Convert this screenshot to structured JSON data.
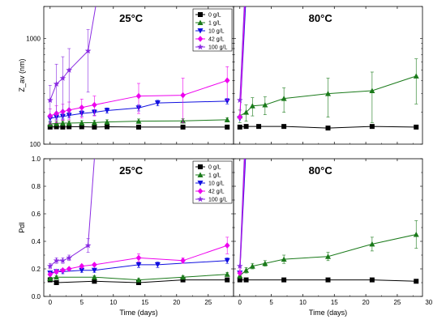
{
  "chart_data": [
    {
      "type": "line",
      "id": "zav_25",
      "panel_label": "25°C",
      "ylabel": "Z_av (nm)",
      "y_scale": "log",
      "ylim": [
        100,
        2000
      ],
      "xlim": [
        -1,
        29
      ],
      "yticks": [
        {
          "v": 100,
          "label": "100"
        },
        {
          "v": 1000,
          "label": "1000"
        }
      ],
      "series": [
        {
          "name": "0 g/L",
          "color": "#000000",
          "marker": "square",
          "x": [
            0,
            1,
            2,
            3,
            5,
            7,
            9,
            14,
            21,
            28
          ],
          "y": [
            145,
            146,
            145,
            146,
            146,
            145,
            146,
            145,
            145,
            145
          ],
          "err": [
            6,
            6,
            6,
            6,
            6,
            6,
            6,
            6,
            6,
            6
          ]
        },
        {
          "name": "1 g/L",
          "color": "#1a7a1a",
          "marker": "triangle-up",
          "x": [
            0,
            1,
            2,
            3,
            5,
            7,
            9,
            14,
            21,
            28
          ],
          "y": [
            155,
            157,
            158,
            158,
            159,
            160,
            162,
            165,
            166,
            170
          ],
          "err": [
            8,
            8,
            8,
            8,
            8,
            8,
            8,
            8,
            8,
            8
          ]
        },
        {
          "name": "10 g/L",
          "color": "#1010e0",
          "marker": "triangle-down",
          "x": [
            0,
            1,
            2,
            3,
            5,
            7,
            9,
            14,
            17,
            28
          ],
          "y": [
            175,
            180,
            183,
            187,
            195,
            200,
            208,
            220,
            245,
            255
          ],
          "err": [
            10,
            10,
            10,
            10,
            12,
            12,
            12,
            14,
            15,
            15
          ]
        },
        {
          "name": "42 g/L",
          "color": "#ee00ee",
          "marker": "diamond",
          "x": [
            0,
            1,
            2,
            3,
            5,
            7,
            14,
            21,
            28
          ],
          "y": [
            185,
            195,
            203,
            210,
            222,
            235,
            285,
            290,
            400
          ],
          "err": [
            30,
            35,
            35,
            40,
            45,
            50,
            90,
            130,
            140
          ]
        },
        {
          "name": "100 g/L",
          "color": "#8a2be2",
          "marker": "star",
          "x": [
            0,
            1,
            2,
            3,
            6,
            7.2
          ],
          "y": [
            260,
            370,
            420,
            500,
            760,
            2000
          ],
          "err": [
            100,
            200,
            250,
            300,
            450,
            0
          ]
        }
      ]
    },
    {
      "type": "line",
      "id": "zav_80",
      "panel_label": "80°C",
      "y_scale": "log",
      "ylim": [
        100,
        2000
      ],
      "xlim": [
        -1,
        29
      ],
      "series": [
        {
          "name": "0 g/L",
          "color": "#000000",
          "marker": "square",
          "x": [
            0,
            1,
            3,
            7,
            14,
            21,
            28
          ],
          "y": [
            145,
            147,
            147,
            147,
            142,
            147,
            145
          ],
          "err": [
            6,
            6,
            6,
            6,
            6,
            6,
            6
          ]
        },
        {
          "name": "1 g/L",
          "color": "#1a7a1a",
          "marker": "triangle-up",
          "x": [
            0,
            1,
            2,
            4,
            7,
            14,
            21,
            28
          ],
          "y": [
            185,
            200,
            230,
            235,
            270,
            300,
            320,
            440
          ],
          "err": [
            25,
            35,
            45,
            45,
            70,
            120,
            160,
            200
          ]
        },
        {
          "name": "10 g/L",
          "color": "#1010e0",
          "marker": "triangle-down",
          "x": [
            0,
            0.9
          ],
          "y": [
            175,
            2000
          ],
          "err": [
            0,
            0
          ]
        },
        {
          "name": "42 g/L",
          "color": "#ee00ee",
          "marker": "diamond",
          "x": [
            0,
            0.8
          ],
          "y": [
            180,
            2000
          ],
          "err": [
            0,
            0
          ]
        },
        {
          "name": "100 g/L",
          "color": "#8a2be2",
          "marker": "star",
          "x": [
            0,
            0.7
          ],
          "y": [
            260,
            2000
          ],
          "err": [
            0,
            0
          ]
        }
      ]
    },
    {
      "type": "line",
      "id": "pdi_25",
      "panel_label": "25°C",
      "ylabel": "PdI",
      "xlabel": "Time (days)",
      "y_scale": "linear",
      "ylim": [
        0.0,
        1.0
      ],
      "xlim": [
        -1,
        29
      ],
      "yticks": [
        {
          "v": 0.0,
          "label": "0.0"
        },
        {
          "v": 0.2,
          "label": "0.2"
        },
        {
          "v": 0.4,
          "label": "0.4"
        },
        {
          "v": 0.6,
          "label": "0.6"
        },
        {
          "v": 0.8,
          "label": "0.8"
        },
        {
          "v": 1.0,
          "label": "1.0"
        }
      ],
      "xticks": [
        {
          "v": 0,
          "label": "0"
        },
        {
          "v": 5,
          "label": "5"
        },
        {
          "v": 10,
          "label": "10"
        },
        {
          "v": 15,
          "label": "15"
        },
        {
          "v": 20,
          "label": "20"
        },
        {
          "v": 25,
          "label": "25"
        }
      ],
      "series": [
        {
          "name": "0 g/L",
          "color": "#000000",
          "marker": "square",
          "x": [
            0,
            1,
            7,
            14,
            21,
            28
          ],
          "y": [
            0.12,
            0.1,
            0.11,
            0.1,
            0.12,
            0.12
          ],
          "err": [
            0.01,
            0.01,
            0.01,
            0.01,
            0.01,
            0.01
          ]
        },
        {
          "name": "1 g/L",
          "color": "#1a7a1a",
          "marker": "triangle-up",
          "x": [
            0,
            1,
            7,
            14,
            21,
            28
          ],
          "y": [
            0.13,
            0.14,
            0.14,
            0.12,
            0.14,
            0.16
          ],
          "err": [
            0.01,
            0.01,
            0.01,
            0.01,
            0.01,
            0.015
          ]
        },
        {
          "name": "10 g/L",
          "color": "#1010e0",
          "marker": "triangle-down",
          "x": [
            0,
            1,
            2,
            5,
            7,
            14,
            17,
            28
          ],
          "y": [
            0.17,
            0.18,
            0.18,
            0.19,
            0.19,
            0.23,
            0.23,
            0.26
          ],
          "err": [
            0.015,
            0.015,
            0.015,
            0.015,
            0.015,
            0.02,
            0.02,
            0.02
          ]
        },
        {
          "name": "42 g/L",
          "color": "#ee00ee",
          "marker": "diamond",
          "x": [
            0,
            1,
            2,
            3,
            5,
            7,
            14,
            21,
            28
          ],
          "y": [
            0.16,
            0.18,
            0.19,
            0.2,
            0.22,
            0.23,
            0.28,
            0.26,
            0.37
          ],
          "err": [
            0.01,
            0.01,
            0.01,
            0.01,
            0.01,
            0.01,
            0.03,
            0.02,
            0.06
          ]
        },
        {
          "name": "100 g/L",
          "color": "#8a2be2",
          "marker": "star",
          "x": [
            0,
            1,
            2,
            3,
            6,
            7
          ],
          "y": [
            0.22,
            0.26,
            0.26,
            0.28,
            0.37,
            1.0
          ],
          "err": [
            0.02,
            0.02,
            0.02,
            0.02,
            0.05,
            0
          ]
        }
      ]
    },
    {
      "type": "line",
      "id": "pdi_80",
      "panel_label": "80°C",
      "xlabel": "Time (days)",
      "y_scale": "linear",
      "ylim": [
        0.0,
        1.0
      ],
      "xlim": [
        -1,
        29
      ],
      "xticks": [
        {
          "v": 0,
          "label": "0"
        },
        {
          "v": 5,
          "label": "5"
        },
        {
          "v": 10,
          "label": "10"
        },
        {
          "v": 15,
          "label": "15"
        },
        {
          "v": 20,
          "label": "20"
        },
        {
          "v": 25,
          "label": "25"
        },
        {
          "v": 30,
          "label": "30"
        }
      ],
      "series": [
        {
          "name": "0 g/L",
          "color": "#000000",
          "marker": "square",
          "x": [
            0,
            1,
            7,
            14,
            21,
            28
          ],
          "y": [
            0.12,
            0.12,
            0.12,
            0.12,
            0.12,
            0.11
          ],
          "err": [
            0.01,
            0.01,
            0.01,
            0.01,
            0.01,
            0.01
          ]
        },
        {
          "name": "1 g/L",
          "color": "#1a7a1a",
          "marker": "triangle-up",
          "x": [
            0,
            1,
            2,
            4,
            7,
            14,
            21,
            28
          ],
          "y": [
            0.15,
            0.19,
            0.22,
            0.24,
            0.27,
            0.29,
            0.38,
            0.45
          ],
          "err": [
            0.02,
            0.02,
            0.02,
            0.02,
            0.03,
            0.03,
            0.05,
            0.1
          ]
        },
        {
          "name": "10 g/L",
          "color": "#1010e0",
          "marker": "triangle-down",
          "x": [
            0,
            0.9
          ],
          "y": [
            0.17,
            1.0
          ],
          "err": [
            0,
            0
          ]
        },
        {
          "name": "42 g/L",
          "color": "#ee00ee",
          "marker": "diamond",
          "x": [
            0,
            0.8
          ],
          "y": [
            0.17,
            1.0
          ],
          "err": [
            0,
            0
          ]
        },
        {
          "name": "100 g/L",
          "color": "#8a2be2",
          "marker": "star",
          "x": [
            0,
            0.7
          ],
          "y": [
            0.22,
            1.0
          ],
          "err": [
            0,
            0
          ]
        }
      ]
    }
  ],
  "legend": {
    "placement": "top-right of each 25°C panel",
    "entries": [
      {
        "name": "0 g/L",
        "color": "#000000",
        "marker": "square"
      },
      {
        "name": "1 g/L",
        "color": "#1a7a1a",
        "marker": "triangle-up"
      },
      {
        "name": "10 g/L",
        "color": "#1010e0",
        "marker": "triangle-down"
      },
      {
        "name": "42 g/L",
        "color": "#ee00ee",
        "marker": "diamond"
      },
      {
        "name": "100 g/L",
        "color": "#8a2be2",
        "marker": "star"
      }
    ]
  }
}
